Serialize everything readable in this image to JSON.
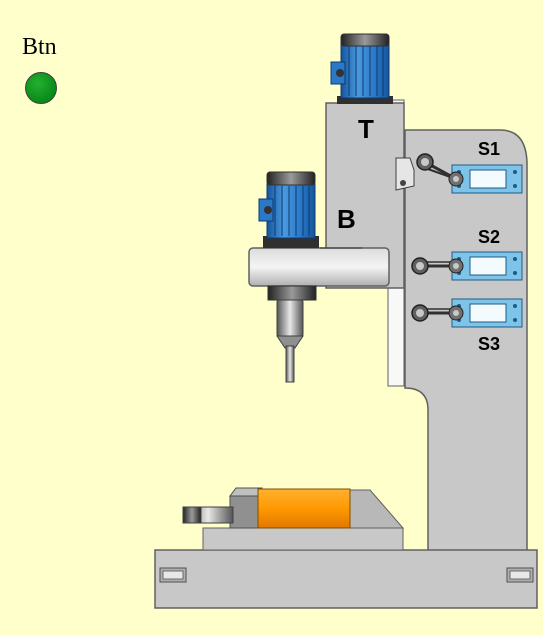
{
  "button": {
    "label": "Btn",
    "lamp_color": "#119922"
  },
  "labels": {
    "tool_motor": "T",
    "bore_motor": "B",
    "switch_1": "S1",
    "switch_2": "S2",
    "switch_3": "S3"
  },
  "colors": {
    "background": "#ffffcc",
    "machine_gray": "#c8c8c8",
    "motor_blue": "#2a78c8",
    "switch_blue": "#7ec4e8",
    "workpiece_orange": "#ff9900"
  }
}
